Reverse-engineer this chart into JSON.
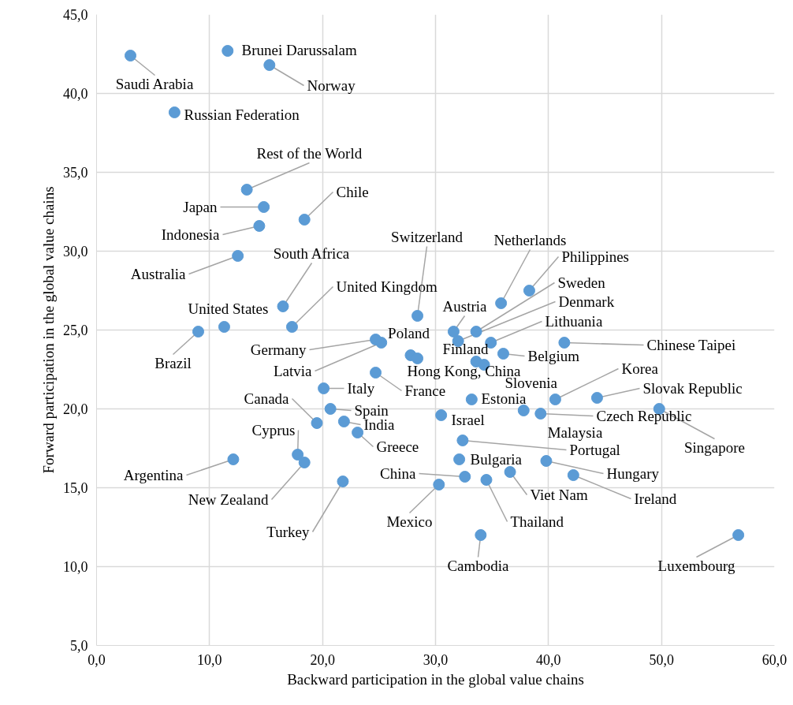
{
  "chart_data": {
    "type": "scatter",
    "xlabel": "Backward participation in the global value chains",
    "ylabel": "Forward participation in the global value chains",
    "xlim": [
      0,
      60
    ],
    "ylim": [
      5,
      45
    ],
    "xticks": [
      {
        "value": 0,
        "label": "0,0"
      },
      {
        "value": 10,
        "label": "10,0"
      },
      {
        "value": 20,
        "label": "20,0"
      },
      {
        "value": 30,
        "label": "30,0"
      },
      {
        "value": 40,
        "label": "40,0"
      },
      {
        "value": 50,
        "label": "50,0"
      },
      {
        "value": 60,
        "label": "60,0"
      }
    ],
    "yticks": [
      {
        "value": 5,
        "label": "5,0"
      },
      {
        "value": 10,
        "label": "10,0"
      },
      {
        "value": 15,
        "label": "15,0"
      },
      {
        "value": 20,
        "label": "20,0"
      },
      {
        "value": 25,
        "label": "25,0"
      },
      {
        "value": 30,
        "label": "30,0"
      },
      {
        "value": 35,
        "label": "35,0"
      },
      {
        "value": 40,
        "label": "40,0"
      },
      {
        "value": 45,
        "label": "45,0"
      }
    ],
    "grid": true,
    "marker": "circle",
    "series": [
      {
        "color": "#5b9bd5",
        "x": [
          3.0,
          11.6,
          15.3,
          6.9,
          13.3,
          14.8,
          18.4,
          14.4,
          12.5,
          16.5,
          17.3,
          11.3,
          9.0,
          28.4,
          35.8,
          38.3,
          33.6,
          32.0,
          31.6,
          33.6,
          34.9,
          36.0,
          41.4,
          27.8,
          24.7,
          25.2,
          28.4,
          24.7,
          20.1,
          19.5,
          20.7,
          21.9,
          23.1,
          33.2,
          34.3,
          40.6,
          44.3,
          39.3,
          49.8,
          30.5,
          37.8,
          32.4,
          17.8,
          12.1,
          18.4,
          21.8,
          32.6,
          30.3,
          32.1,
          39.8,
          36.6,
          34.5,
          42.2,
          34.0,
          56.8
        ],
        "values": [
          42.4,
          42.7,
          41.8,
          38.8,
          33.9,
          32.8,
          32.0,
          31.6,
          29.7,
          26.5,
          25.2,
          25.2,
          24.9,
          25.9,
          26.7,
          27.5,
          24.9,
          24.3,
          24.9,
          23.0,
          24.2,
          23.5,
          24.2,
          23.4,
          24.4,
          24.2,
          23.2,
          22.3,
          21.3,
          19.1,
          20.0,
          19.2,
          18.5,
          20.6,
          22.8,
          20.6,
          20.7,
          19.7,
          20.0,
          19.6,
          19.9,
          18.0,
          17.1,
          16.8,
          16.6,
          15.4,
          15.7,
          15.2,
          16.8,
          16.7,
          16.0,
          15.5,
          15.8,
          12.0,
          12.0
        ]
      }
    ],
    "annotations": [
      {
        "text": "Saudi Arabia",
        "x": 3.0,
        "y": 42.4
      },
      {
        "text": "Brunei Darussalam",
        "x": 11.6,
        "y": 42.7
      },
      {
        "text": "Norway",
        "x": 15.3,
        "y": 41.8
      },
      {
        "text": "Russian Federation",
        "x": 6.9,
        "y": 38.8
      },
      {
        "text": "Rest of the World",
        "x": 13.3,
        "y": 33.9
      },
      {
        "text": "Japan",
        "x": 14.8,
        "y": 32.8
      },
      {
        "text": "Chile",
        "x": 18.4,
        "y": 32.0
      },
      {
        "text": "Indonesia",
        "x": 14.4,
        "y": 31.6
      },
      {
        "text": "Australia",
        "x": 12.5,
        "y": 29.7
      },
      {
        "text": "South Africa",
        "x": 16.5,
        "y": 26.5
      },
      {
        "text": "United Kingdom",
        "x": 17.3,
        "y": 25.2
      },
      {
        "text": "United States",
        "x": 11.3,
        "y": 25.2
      },
      {
        "text": "Brazil",
        "x": 9.0,
        "y": 24.9
      },
      {
        "text": "Switzerland",
        "x": 28.4,
        "y": 25.9
      },
      {
        "text": "Netherlands",
        "x": 35.8,
        "y": 26.7
      },
      {
        "text": "Philippines",
        "x": 38.3,
        "y": 27.5
      },
      {
        "text": "Sweden",
        "x": 33.6,
        "y": 24.9
      },
      {
        "text": "Denmark",
        "x": 32.0,
        "y": 24.3
      },
      {
        "text": "Austria",
        "x": 31.6,
        "y": 24.9
      },
      {
        "text": "Finland",
        "x": 33.6,
        "y": 23.0
      },
      {
        "text": "Lithuania",
        "x": 34.9,
        "y": 24.2
      },
      {
        "text": "Belgium",
        "x": 36.0,
        "y": 23.5
      },
      {
        "text": "Chinese Taipei",
        "x": 41.4,
        "y": 24.2
      },
      {
        "text": "Poland",
        "x": 27.8,
        "y": 23.4
      },
      {
        "text": "Germany",
        "x": 24.7,
        "y": 24.4
      },
      {
        "text": "Latvia",
        "x": 25.2,
        "y": 24.2
      },
      {
        "text": "Hong Kong, China",
        "x": 28.4,
        "y": 23.2
      },
      {
        "text": "France",
        "x": 24.7,
        "y": 22.3
      },
      {
        "text": "Italy",
        "x": 20.1,
        "y": 21.3
      },
      {
        "text": "Canada",
        "x": 19.5,
        "y": 19.1
      },
      {
        "text": "Spain",
        "x": 20.7,
        "y": 20.0
      },
      {
        "text": "India",
        "x": 21.9,
        "y": 19.2
      },
      {
        "text": "Greece",
        "x": 23.1,
        "y": 18.5
      },
      {
        "text": "Estonia",
        "x": 33.2,
        "y": 20.6
      },
      {
        "text": "Slovenia",
        "x": 34.3,
        "y": 22.8
      },
      {
        "text": "Korea",
        "x": 40.6,
        "y": 20.6
      },
      {
        "text": "Slovak Republic",
        "x": 44.3,
        "y": 20.7
      },
      {
        "text": "Czech Republic",
        "x": 39.3,
        "y": 19.7
      },
      {
        "text": "Singapore",
        "x": 49.8,
        "y": 20.0
      },
      {
        "text": "Israel",
        "x": 30.5,
        "y": 19.6
      },
      {
        "text": "Malaysia",
        "x": 37.8,
        "y": 19.9
      },
      {
        "text": "Portugal",
        "x": 32.4,
        "y": 18.0
      },
      {
        "text": "Cyprus",
        "x": 17.8,
        "y": 17.1
      },
      {
        "text": "Argentina",
        "x": 12.1,
        "y": 16.8
      },
      {
        "text": "New Zealand",
        "x": 18.4,
        "y": 16.6
      },
      {
        "text": "Turkey",
        "x": 21.8,
        "y": 15.4
      },
      {
        "text": "China",
        "x": 32.6,
        "y": 15.7
      },
      {
        "text": "Mexico",
        "x": 30.3,
        "y": 15.2
      },
      {
        "text": "Bulgaria",
        "x": 32.1,
        "y": 16.8
      },
      {
        "text": "Hungary",
        "x": 39.8,
        "y": 16.7
      },
      {
        "text": "Viet Nam",
        "x": 36.6,
        "y": 16.0
      },
      {
        "text": "Thailand",
        "x": 34.5,
        "y": 15.5
      },
      {
        "text": "Ireland",
        "x": 42.2,
        "y": 15.8
      },
      {
        "text": "Cambodia",
        "x": 34.0,
        "y": 12.0
      },
      {
        "text": "Luxembourg",
        "x": 56.8,
        "y": 12.0
      }
    ]
  }
}
